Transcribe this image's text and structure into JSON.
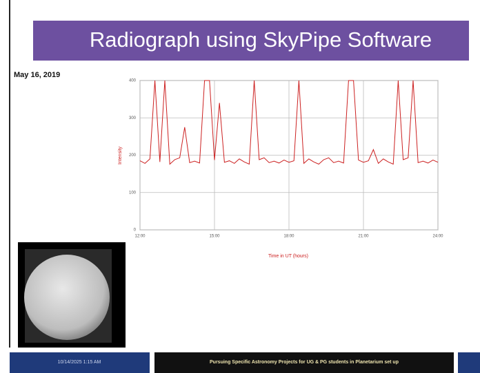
{
  "slide": {
    "title": "Radiograph using SkyPipe Software",
    "date": "May 16, 2019"
  },
  "footer": {
    "datetime": "10/14/2025 1:15 AM",
    "caption": "Pursuing Specific Astronomy Projects for UG & PG students in Planetarium set up"
  },
  "chart_data": {
    "type": "line",
    "ylabel": "Intensity",
    "xlabel": "Time in UT (hours)",
    "color": "#cc2020",
    "grid": true,
    "xlim": [
      12,
      24
    ],
    "ylim": [
      0,
      400
    ],
    "yticks": [
      0,
      100,
      200,
      300,
      400
    ],
    "xticks": [
      {
        "value": 12,
        "label": "12:00"
      },
      {
        "value": 15,
        "label": "15:00"
      },
      {
        "value": 18,
        "label": "18:00"
      },
      {
        "value": 21,
        "label": "21:00"
      },
      {
        "value": 24,
        "label": "24:00"
      }
    ],
    "x": [
      12,
      12.2,
      12.4,
      12.6,
      12.8,
      13,
      13.2,
      13.4,
      13.6,
      13.8,
      14,
      14.2,
      14.4,
      14.6,
      14.8,
      15,
      15.2,
      15.4,
      15.6,
      15.8,
      16,
      16.2,
      16.4,
      16.6,
      16.8,
      17,
      17.2,
      17.4,
      17.6,
      17.8,
      18,
      18.2,
      18.4,
      18.6,
      18.8,
      19,
      19.2,
      19.4,
      19.6,
      19.8,
      20,
      20.2,
      20.4,
      20.6,
      20.8,
      21,
      21.2,
      21.4,
      21.6,
      21.8,
      22,
      22.2,
      22.4,
      22.6,
      22.8,
      23,
      23.2,
      23.4,
      23.6,
      23.8,
      24
    ],
    "values": [
      185,
      178,
      190,
      400,
      182,
      400,
      176,
      188,
      193,
      275,
      180,
      184,
      179,
      400,
      400,
      187,
      340,
      181,
      185,
      178,
      190,
      182,
      176,
      400,
      188,
      193,
      180,
      184,
      179,
      187,
      181,
      185,
      400,
      178,
      190,
      182,
      176,
      188,
      193,
      180,
      184,
      179,
      400,
      400,
      187,
      181,
      185,
      215,
      178,
      190,
      182,
      176,
      400,
      188,
      193,
      400,
      180,
      184,
      179,
      187,
      181
    ]
  }
}
